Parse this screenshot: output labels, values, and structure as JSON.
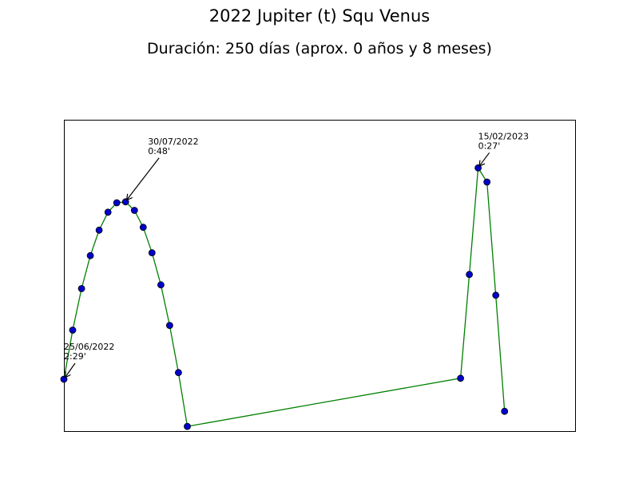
{
  "chart_data": {
    "type": "line",
    "title": "2022 Jupiter (t) Squ Venus",
    "subtitle": "Duración: 250 días (aprox. 0 años y 8 meses)",
    "xlabel": "",
    "ylabel": "",
    "grid": false,
    "legend": "none",
    "x_ticks_visible": false,
    "y_ticks_visible": false,
    "xlim": [
      0,
      58
    ],
    "ylim": [
      0,
      3.3
    ],
    "series": [
      {
        "line_color": "#008000",
        "marker_color": "#0000cc",
        "x": [
          0,
          1,
          2,
          3,
          4,
          5,
          6,
          7,
          8,
          9,
          10,
          11,
          12,
          13,
          14,
          45,
          46,
          47,
          48,
          49,
          50
        ],
        "y": [
          0.55,
          1.07,
          1.51,
          1.86,
          2.13,
          2.32,
          2.42,
          2.43,
          2.34,
          2.16,
          1.89,
          1.55,
          1.12,
          0.62,
          0.05,
          0.56,
          1.66,
          2.79,
          2.64,
          1.44,
          0.21
        ]
      }
    ],
    "annotations": [
      {
        "line1": "25/06/2022",
        "line2": "2:29'",
        "point_index": 0
      },
      {
        "line1": "30/07/2022",
        "line2": "0:48'",
        "point_index": 7
      },
      {
        "line1": "15/02/2023",
        "line2": "0:27'",
        "point_index": 17
      }
    ]
  }
}
